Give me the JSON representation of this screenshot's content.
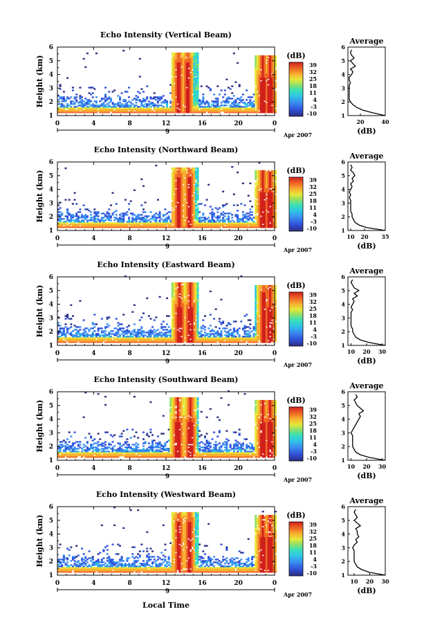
{
  "chart_data": [
    {
      "type": "heatmap",
      "title": "Echo Intensity (Vertical Beam)",
      "ylabel": "Height (km)",
      "x_ticks": [
        "0",
        "4",
        "8",
        "12",
        "16",
        "20",
        "0"
      ],
      "y_ticks": [
        "1",
        "2",
        "3",
        "4",
        "5",
        "6"
      ],
      "xlim": [
        0,
        24
      ],
      "ylim": [
        1,
        6
      ],
      "date_tick": "9",
      "date_label": "Apr 2007",
      "colorbar": {
        "unit": "(dB)",
        "ticks": [
          "39",
          "32",
          "25",
          "18",
          "11",
          "4",
          "-3",
          "-10"
        ],
        "range": [
          -10,
          39
        ]
      },
      "peaks": [
        13.3,
        14.3,
        22.6,
        23.4
      ],
      "profile": {
        "title": "Average",
        "xlabel": "(dB)",
        "xlim": [
          10,
          40
        ],
        "ylim": [
          1,
          6
        ],
        "x_ticks": [
          "20",
          "40"
        ],
        "y_ticks": [
          "1",
          "2",
          "3",
          "4",
          "5",
          "6"
        ],
        "heights": [
          1.0,
          1.2,
          1.4,
          1.6,
          1.8,
          2.0,
          2.2,
          2.4,
          2.6,
          2.8,
          3.0,
          3.2,
          3.4,
          3.6,
          3.8,
          4.0,
          4.2,
          4.4,
          4.6,
          4.8,
          5.0,
          5.2,
          5.4,
          5.6,
          5.8
        ],
        "values": [
          40,
          30,
          22,
          17,
          14,
          12,
          11,
          11,
          11,
          11,
          11,
          11,
          12,
          11,
          11,
          13,
          14,
          12,
          16,
          14,
          12,
          15,
          13,
          12,
          13
        ]
      }
    },
    {
      "type": "heatmap",
      "title": "Echo Intensity (Northward Beam)",
      "ylabel": "Height (km)",
      "x_ticks": [
        "0",
        "4",
        "8",
        "12",
        "16",
        "20",
        "0"
      ],
      "y_ticks": [
        "1",
        "2",
        "3",
        "4",
        "5",
        "6"
      ],
      "xlim": [
        0,
        24
      ],
      "ylim": [
        1,
        6
      ],
      "date_tick": "9",
      "date_label": "Apr 2007",
      "colorbar": {
        "unit": "(dB)",
        "ticks": [
          "39",
          "32",
          "25",
          "18",
          "11",
          "4",
          "-3",
          "-10"
        ],
        "range": [
          -10,
          39
        ]
      },
      "peaks": [
        13.3,
        14.5,
        22.6,
        23.4
      ],
      "profile": {
        "title": "Average",
        "xlabel": "(dB)",
        "xlim": [
          8,
          35
        ],
        "ylim": [
          1,
          6
        ],
        "x_ticks": [
          "10",
          "20",
          "35"
        ],
        "y_ticks": [
          "1",
          "2",
          "3",
          "4",
          "5",
          "6"
        ],
        "heights": [
          1.0,
          1.2,
          1.4,
          1.6,
          1.8,
          2.0,
          2.2,
          2.4,
          2.6,
          2.8,
          3.0,
          3.2,
          3.4,
          3.6,
          3.8,
          4.0,
          4.2,
          4.4,
          4.6,
          4.8,
          5.0,
          5.2,
          5.4,
          5.6,
          5.8
        ],
        "values": [
          35,
          22,
          16,
          13,
          12,
          11,
          11,
          10,
          10,
          10,
          10,
          10,
          9,
          10,
          9,
          10,
          11,
          10,
          12,
          11,
          13,
          12,
          10,
          11,
          10
        ]
      }
    },
    {
      "type": "heatmap",
      "title": "Echo Intensity (Eastward Beam)",
      "ylabel": "Height (km)",
      "x_ticks": [
        "0",
        "4",
        "8",
        "12",
        "16",
        "20",
        "0"
      ],
      "y_ticks": [
        "1",
        "2",
        "3",
        "4",
        "5",
        "6"
      ],
      "xlim": [
        0,
        24
      ],
      "ylim": [
        1,
        6
      ],
      "date_tick": "9",
      "date_label": "Apr 2007",
      "colorbar": {
        "unit": "(dB)",
        "ticks": [
          "39",
          "32",
          "25",
          "18",
          "11",
          "4",
          "-3",
          "-10"
        ],
        "range": [
          -10,
          39
        ]
      },
      "peaks": [
        13.4,
        14.6,
        22.7,
        23.4
      ],
      "profile": {
        "title": "Average",
        "xlabel": "(dB)",
        "xlim": [
          8,
          32
        ],
        "ylim": [
          1,
          6
        ],
        "x_ticks": [
          "10",
          "20",
          "30"
        ],
        "y_ticks": [
          "1",
          "2",
          "3",
          "4",
          "5",
          "6"
        ],
        "heights": [
          1.0,
          1.2,
          1.4,
          1.6,
          1.8,
          2.0,
          2.2,
          2.4,
          2.6,
          2.8,
          3.0,
          3.2,
          3.4,
          3.6,
          3.8,
          4.0,
          4.2,
          4.4,
          4.6,
          4.8,
          5.0,
          5.2,
          5.4,
          5.6,
          5.8
        ],
        "values": [
          32,
          22,
          16,
          13,
          12,
          11,
          11,
          10,
          10,
          10,
          10,
          10,
          10,
          11,
          10,
          11,
          12,
          11,
          14,
          12,
          15,
          12,
          11,
          10,
          11
        ]
      }
    },
    {
      "type": "heatmap",
      "title": "Echo Intensity (Southward Beam)",
      "ylabel": "Height (km)",
      "x_ticks": [
        "0",
        "4",
        "8",
        "12",
        "16",
        "20",
        "0"
      ],
      "y_ticks": [
        "1",
        "2",
        "3",
        "4",
        "5",
        "6"
      ],
      "xlim": [
        0,
        24
      ],
      "ylim": [
        1,
        6
      ],
      "date_tick": "9",
      "date_label": "Apr 2007",
      "colorbar": {
        "unit": "(dB)",
        "ticks": [
          "39",
          "32",
          "25",
          "18",
          "11",
          "4",
          "-3",
          "-10"
        ],
        "range": [
          -10,
          39
        ]
      },
      "peaks": [
        13.2,
        14.6,
        22.6,
        23.4
      ],
      "profile": {
        "title": "Average",
        "xlabel": "(dB)",
        "xlim": [
          8,
          32
        ],
        "ylim": [
          1,
          6
        ],
        "x_ticks": [
          "10",
          "20",
          "30"
        ],
        "y_ticks": [
          "1",
          "2",
          "3",
          "4",
          "5",
          "6"
        ],
        "heights": [
          1.0,
          1.2,
          1.4,
          1.6,
          1.8,
          2.0,
          2.2,
          2.4,
          2.6,
          2.8,
          3.0,
          3.2,
          3.4,
          3.6,
          3.8,
          4.0,
          4.2,
          4.4,
          4.6,
          4.8,
          5.0,
          5.2,
          5.4,
          5.6,
          5.8
        ],
        "values": [
          32,
          22,
          16,
          13,
          12,
          11,
          11,
          11,
          11,
          11,
          10,
          11,
          12,
          13,
          14,
          15,
          16,
          15,
          18,
          16,
          14,
          13,
          12,
          14,
          13
        ]
      }
    },
    {
      "type": "heatmap",
      "title": "Echo Intensity (Westward Beam)",
      "ylabel": "Height (km)",
      "x_ticks": [
        "0",
        "4",
        "8",
        "12",
        "16",
        "20",
        "0"
      ],
      "y_ticks": [
        "1",
        "2",
        "3",
        "4",
        "5",
        "6"
      ],
      "xlim": [
        0,
        24
      ],
      "ylim": [
        1,
        6
      ],
      "date_tick": "9",
      "date_label": "Apr 2007",
      "colorbar": {
        "unit": "(dB)",
        "ticks": [
          "39",
          "32",
          "25",
          "18",
          "11",
          "4",
          "-3",
          "-10"
        ],
        "range": [
          -10,
          39
        ]
      },
      "peaks": [
        13.3,
        14.5,
        22.6,
        23.4
      ],
      "profile": {
        "title": "Average",
        "xlabel": "(dB)",
        "xlim": [
          6,
          30
        ],
        "ylim": [
          1,
          6
        ],
        "x_ticks": [
          "10",
          "20",
          "30"
        ],
        "y_ticks": [
          "1",
          "2",
          "3",
          "4",
          "5",
          "6"
        ],
        "heights": [
          1.0,
          1.2,
          1.4,
          1.6,
          1.8,
          2.0,
          2.2,
          2.4,
          2.6,
          2.8,
          3.0,
          3.2,
          3.4,
          3.6,
          3.8,
          4.0,
          4.2,
          4.4,
          4.6,
          4.8,
          5.0,
          5.2,
          5.4,
          5.6,
          5.8
        ],
        "values": [
          30,
          20,
          15,
          12,
          11,
          10,
          10,
          10,
          10,
          10,
          9,
          10,
          12,
          11,
          13,
          12,
          12,
          11,
          14,
          12,
          10,
          12,
          11,
          10,
          11
        ]
      }
    }
  ],
  "xlabel_bottom": "Local Time",
  "colorscale": [
    "#2b2e80",
    "#3050d8",
    "#3a8cf0",
    "#2fc4e8",
    "#38e0b8",
    "#8ee06a",
    "#e6e838",
    "#f8b030",
    "#f06a26",
    "#d0201c"
  ]
}
